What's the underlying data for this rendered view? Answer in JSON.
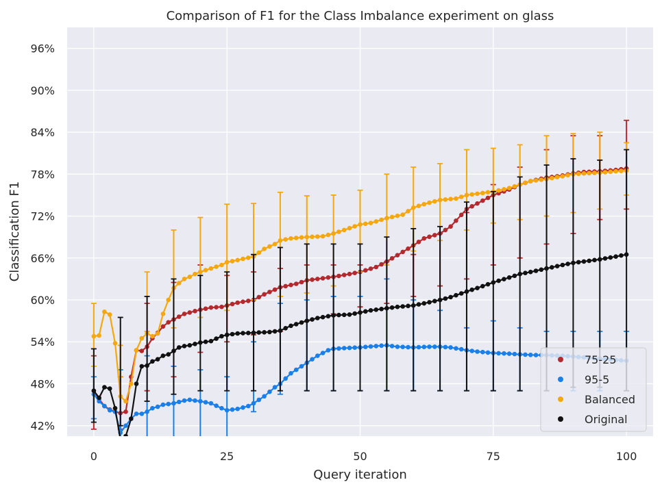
{
  "chart_data": {
    "type": "line",
    "title": "Comparison of F1 for the Class Imbalance experiment on glass",
    "xlabel": "Query iteration",
    "ylabel": "Classification F1",
    "xlim": [
      -5,
      105
    ],
    "ylim": [
      0.405,
      0.99
    ],
    "xticks": [
      0,
      25,
      50,
      75,
      100
    ],
    "yticks": [
      0.42,
      0.48,
      0.54,
      0.6,
      0.66,
      0.72,
      0.78,
      0.84,
      0.9,
      0.96
    ],
    "ytick_labels": [
      "42%",
      "48%",
      "54%",
      "60%",
      "66%",
      "72%",
      "78%",
      "84%",
      "90%",
      "96%"
    ],
    "grid": true,
    "legend_position": "bottom-right",
    "error_bar_every": 5,
    "series": [
      {
        "name": "75-25",
        "color": "#b22a2e",
        "keypoints": [
          [
            0,
            0.47
          ],
          [
            1,
            0.458
          ],
          [
            2,
            0.448
          ],
          [
            3,
            0.443
          ],
          [
            4,
            0.44
          ],
          [
            5,
            0.438
          ],
          [
            6,
            0.44
          ],
          [
            7,
            0.49
          ],
          [
            8,
            0.528
          ],
          [
            9,
            0.527
          ],
          [
            10,
            0.533
          ],
          [
            11,
            0.545
          ],
          [
            12,
            0.553
          ],
          [
            13,
            0.562
          ],
          [
            14,
            0.568
          ],
          [
            15,
            0.572
          ],
          [
            16,
            0.576
          ],
          [
            17,
            0.58
          ],
          [
            18,
            0.582
          ],
          [
            19,
            0.584
          ],
          [
            20,
            0.586
          ],
          [
            22,
            0.589
          ],
          [
            24,
            0.59
          ],
          [
            25,
            0.592
          ],
          [
            27,
            0.596
          ],
          [
            30,
            0.6
          ],
          [
            32,
            0.608
          ],
          [
            35,
            0.618
          ],
          [
            38,
            0.623
          ],
          [
            40,
            0.628
          ],
          [
            42,
            0.63
          ],
          [
            45,
            0.633
          ],
          [
            48,
            0.637
          ],
          [
            50,
            0.64
          ],
          [
            53,
            0.647
          ],
          [
            55,
            0.655
          ],
          [
            57,
            0.664
          ],
          [
            60,
            0.678
          ],
          [
            62,
            0.688
          ],
          [
            65,
            0.695
          ],
          [
            67,
            0.705
          ],
          [
            70,
            0.73
          ],
          [
            72,
            0.738
          ],
          [
            75,
            0.75
          ],
          [
            78,
            0.758
          ],
          [
            80,
            0.765
          ],
          [
            82,
            0.77
          ],
          [
            85,
            0.775
          ],
          [
            88,
            0.778
          ],
          [
            90,
            0.781
          ],
          [
            92,
            0.783
          ],
          [
            95,
            0.784
          ],
          [
            98,
            0.786
          ],
          [
            100,
            0.788
          ]
        ],
        "err_low": [
          0.415,
          0.415,
          0.47,
          0.49,
          0.525,
          0.54,
          0.55,
          0.555,
          0.57,
          0.58,
          0.59,
          0.595,
          0.605,
          0.62,
          0.63,
          0.65,
          0.66,
          0.68,
          0.695,
          0.715,
          0.73
        ],
        "err_high": [
          0.52,
          0.49,
          0.595,
          0.625,
          0.65,
          0.635,
          0.64,
          0.645,
          0.65,
          0.65,
          0.65,
          0.655,
          0.665,
          0.695,
          0.725,
          0.765,
          0.79,
          0.815,
          0.835,
          0.835,
          0.857
        ]
      },
      {
        "name": "95-5",
        "color": "#1a7fe8",
        "keypoints": [
          [
            0,
            0.465
          ],
          [
            1,
            0.455
          ],
          [
            2,
            0.448
          ],
          [
            3,
            0.442
          ],
          [
            4,
            0.44
          ],
          [
            5,
            0.41
          ],
          [
            6,
            0.42
          ],
          [
            7,
            0.43
          ],
          [
            8,
            0.437
          ],
          [
            9,
            0.437
          ],
          [
            10,
            0.44
          ],
          [
            11,
            0.445
          ],
          [
            12,
            0.447
          ],
          [
            13,
            0.45
          ],
          [
            14,
            0.451
          ],
          [
            15,
            0.452
          ],
          [
            16,
            0.454
          ],
          [
            17,
            0.456
          ],
          [
            18,
            0.457
          ],
          [
            19,
            0.456
          ],
          [
            20,
            0.455
          ],
          [
            22,
            0.452
          ],
          [
            24,
            0.445
          ],
          [
            25,
            0.442
          ],
          [
            27,
            0.444
          ],
          [
            29,
            0.448
          ],
          [
            30,
            0.452
          ],
          [
            32,
            0.462
          ],
          [
            34,
            0.475
          ],
          [
            35,
            0.48
          ],
          [
            37,
            0.495
          ],
          [
            39,
            0.505
          ],
          [
            40,
            0.51
          ],
          [
            42,
            0.52
          ],
          [
            44,
            0.528
          ],
          [
            45,
            0.53
          ],
          [
            47,
            0.531
          ],
          [
            50,
            0.532
          ],
          [
            53,
            0.534
          ],
          [
            55,
            0.535
          ],
          [
            57,
            0.533
          ],
          [
            60,
            0.532
          ],
          [
            63,
            0.533
          ],
          [
            65,
            0.533
          ],
          [
            67,
            0.532
          ],
          [
            70,
            0.528
          ],
          [
            72,
            0.526
          ],
          [
            75,
            0.524
          ],
          [
            78,
            0.523
          ],
          [
            80,
            0.522
          ],
          [
            83,
            0.521
          ],
          [
            85,
            0.521
          ],
          [
            88,
            0.52
          ],
          [
            90,
            0.519
          ],
          [
            93,
            0.517
          ],
          [
            95,
            0.516
          ],
          [
            98,
            0.514
          ],
          [
            100,
            0.513
          ]
        ],
        "err_low": [
          0.43,
          0.39,
          0.39,
          0.39,
          0.39,
          0.4,
          0.44,
          0.465,
          0.47,
          0.47,
          0.47,
          0.47,
          0.47,
          0.47,
          0.47,
          0.47,
          0.47,
          0.47,
          0.47,
          0.47,
          0.47
        ],
        "err_high": [
          0.49,
          0.5,
          0.52,
          0.505,
          0.5,
          0.49,
          0.54,
          0.595,
          0.6,
          0.605,
          0.605,
          0.63,
          0.6,
          0.585,
          0.56,
          0.57,
          0.56,
          0.555,
          0.555,
          0.555,
          0.555
        ]
      },
      {
        "name": "Balanced",
        "color": "#f5a70f",
        "keypoints": [
          [
            0,
            0.548
          ],
          [
            1,
            0.549
          ],
          [
            2,
            0.583
          ],
          [
            3,
            0.579
          ],
          [
            4,
            0.538
          ],
          [
            5,
            0.462
          ],
          [
            6,
            0.455
          ],
          [
            7,
            0.48
          ],
          [
            8,
            0.528
          ],
          [
            9,
            0.545
          ],
          [
            10,
            0.552
          ],
          [
            11,
            0.548
          ],
          [
            12,
            0.552
          ],
          [
            13,
            0.58
          ],
          [
            14,
            0.6
          ],
          [
            15,
            0.617
          ],
          [
            16,
            0.624
          ],
          [
            17,
            0.63
          ],
          [
            18,
            0.633
          ],
          [
            19,
            0.637
          ],
          [
            20,
            0.64
          ],
          [
            22,
            0.645
          ],
          [
            24,
            0.65
          ],
          [
            25,
            0.654
          ],
          [
            27,
            0.657
          ],
          [
            30,
            0.662
          ],
          [
            32,
            0.673
          ],
          [
            34,
            0.68
          ],
          [
            35,
            0.685
          ],
          [
            37,
            0.688
          ],
          [
            40,
            0.69
          ],
          [
            43,
            0.691
          ],
          [
            45,
            0.695
          ],
          [
            47,
            0.7
          ],
          [
            50,
            0.708
          ],
          [
            52,
            0.71
          ],
          [
            55,
            0.717
          ],
          [
            58,
            0.722
          ],
          [
            60,
            0.732
          ],
          [
            62,
            0.737
          ],
          [
            65,
            0.743
          ],
          [
            68,
            0.745
          ],
          [
            70,
            0.75
          ],
          [
            72,
            0.752
          ],
          [
            75,
            0.755
          ],
          [
            78,
            0.76
          ],
          [
            80,
            0.765
          ],
          [
            82,
            0.77
          ],
          [
            85,
            0.773
          ],
          [
            88,
            0.777
          ],
          [
            90,
            0.78
          ],
          [
            92,
            0.781
          ],
          [
            95,
            0.782
          ],
          [
            98,
            0.784
          ],
          [
            100,
            0.785
          ]
        ],
        "err_low": [
          0.505,
          0.49,
          0.555,
          0.56,
          0.575,
          0.585,
          0.6,
          0.605,
          0.61,
          0.62,
          0.64,
          0.65,
          0.67,
          0.685,
          0.7,
          0.71,
          0.715,
          0.72,
          0.725,
          0.73,
          0.75
        ],
        "err_high": [
          0.595,
          0.535,
          0.64,
          0.7,
          0.718,
          0.737,
          0.738,
          0.754,
          0.749,
          0.75,
          0.757,
          0.78,
          0.79,
          0.795,
          0.815,
          0.817,
          0.822,
          0.835,
          0.838,
          0.84,
          0.825
        ]
      },
      {
        "name": "Original",
        "color": "#111111",
        "keypoints": [
          [
            0,
            0.47
          ],
          [
            1,
            0.46
          ],
          [
            2,
            0.475
          ],
          [
            3,
            0.473
          ],
          [
            4,
            0.445
          ],
          [
            5,
            0.4
          ],
          [
            6,
            0.405
          ],
          [
            7,
            0.43
          ],
          [
            8,
            0.48
          ],
          [
            9,
            0.505
          ],
          [
            10,
            0.506
          ],
          [
            11,
            0.512
          ],
          [
            12,
            0.515
          ],
          [
            13,
            0.52
          ],
          [
            14,
            0.522
          ],
          [
            15,
            0.527
          ],
          [
            16,
            0.532
          ],
          [
            17,
            0.534
          ],
          [
            18,
            0.535
          ],
          [
            19,
            0.537
          ],
          [
            20,
            0.539
          ],
          [
            22,
            0.541
          ],
          [
            24,
            0.548
          ],
          [
            25,
            0.55
          ],
          [
            27,
            0.552
          ],
          [
            30,
            0.553
          ],
          [
            33,
            0.554
          ],
          [
            35,
            0.556
          ],
          [
            37,
            0.563
          ],
          [
            40,
            0.57
          ],
          [
            42,
            0.574
          ],
          [
            45,
            0.578
          ],
          [
            48,
            0.579
          ],
          [
            50,
            0.582
          ],
          [
            52,
            0.585
          ],
          [
            55,
            0.588
          ],
          [
            57,
            0.59
          ],
          [
            60,
            0.592
          ],
          [
            62,
            0.595
          ],
          [
            65,
            0.6
          ],
          [
            67,
            0.604
          ],
          [
            70,
            0.612
          ],
          [
            72,
            0.617
          ],
          [
            75,
            0.625
          ],
          [
            78,
            0.632
          ],
          [
            80,
            0.637
          ],
          [
            82,
            0.64
          ],
          [
            85,
            0.645
          ],
          [
            88,
            0.65
          ],
          [
            90,
            0.653
          ],
          [
            92,
            0.655
          ],
          [
            95,
            0.658
          ],
          [
            98,
            0.662
          ],
          [
            100,
            0.665
          ]
        ],
        "err_low": [
          0.425,
          0.42,
          0.455,
          0.465,
          0.47,
          0.47,
          0.47,
          0.47,
          0.47,
          0.47,
          0.47,
          0.47,
          0.47,
          0.47,
          0.47,
          0.47,
          0.47,
          0.47,
          0.475,
          0.475,
          0.47
        ],
        "err_high": [
          0.53,
          0.575,
          0.605,
          0.63,
          0.635,
          0.64,
          0.665,
          0.675,
          0.68,
          0.68,
          0.68,
          0.69,
          0.702,
          0.705,
          0.74,
          0.755,
          0.776,
          0.793,
          0.802,
          0.8,
          0.815
        ]
      }
    ]
  }
}
